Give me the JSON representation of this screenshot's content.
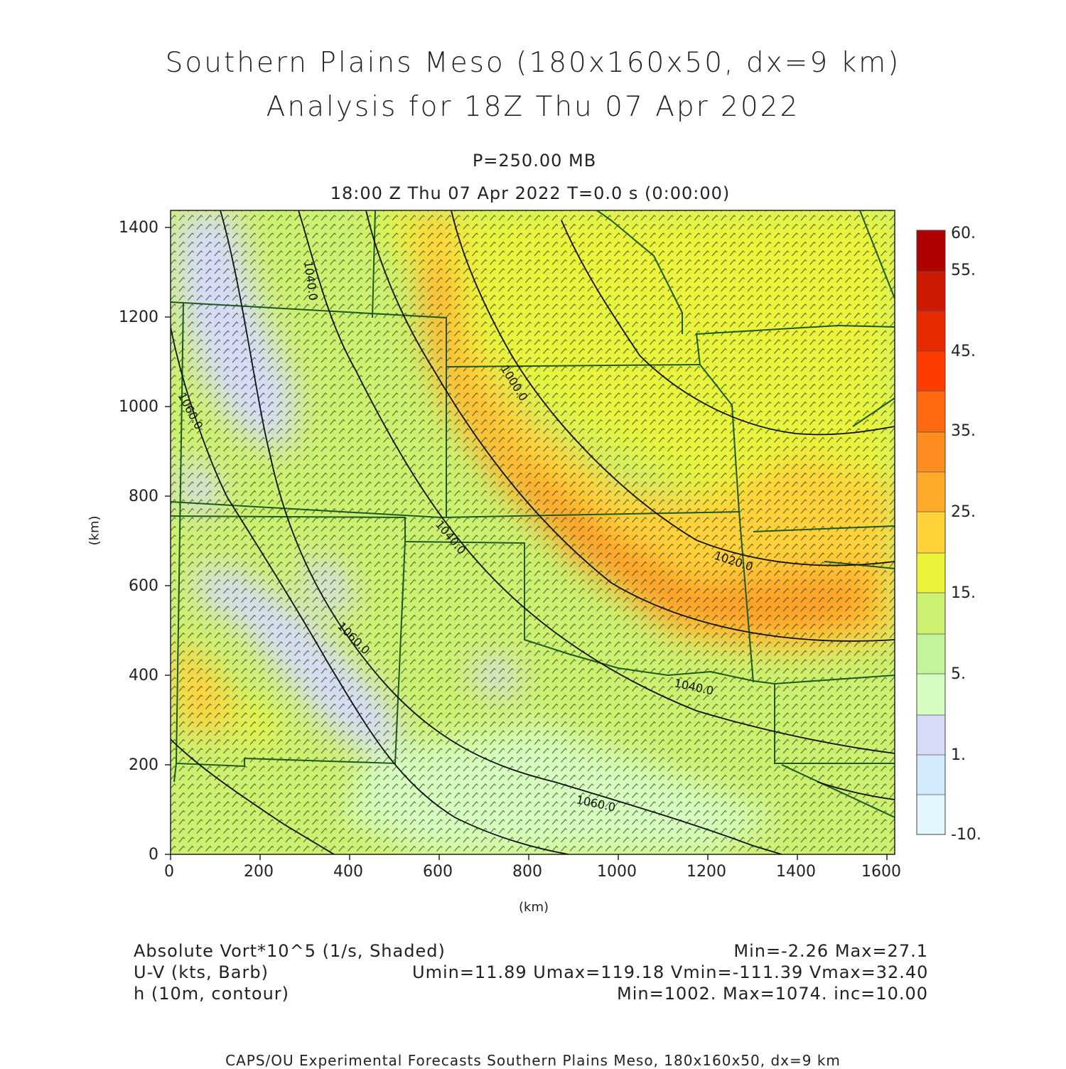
{
  "title_line1": "Southern Plains Meso (180x160x50, dx=9 km)",
  "title_line2": "Analysis for 18Z Thu 07 Apr 2022",
  "subtitle_level": "P=250.00 MB",
  "subtitle_time": "18:00 Z Thu 07 Apr 2022    T=0.0 s (0:00:00)",
  "axes": {
    "x_label": "(km)",
    "y_label": "(km)",
    "x_ticks": [
      "0",
      "200",
      "400",
      "600",
      "800",
      "1000",
      "1200",
      "1400",
      "1600"
    ],
    "y_ticks": [
      "0",
      "200",
      "400",
      "600",
      "800",
      "1000",
      "1200",
      "1400"
    ],
    "x_range": [
      0,
      1620
    ],
    "y_range": [
      0,
      1440
    ]
  },
  "colorbar": {
    "labels": [
      "60.",
      "55.",
      "45.",
      "35.",
      "25.",
      "15.",
      "5.",
      "1.",
      "-10."
    ],
    "colors": [
      "#b00000",
      "#cc1a00",
      "#e82a00",
      "#ff3c00",
      "#ff6a10",
      "#ff8c20",
      "#ffaa2a",
      "#ffd23a",
      "#ecf43a",
      "#ccf070",
      "#c4f49a",
      "#d6fcc0",
      "#d6dcf8",
      "#d2eafc",
      "#e4f6ff"
    ]
  },
  "contours": {
    "labels": [
      "1040.0",
      "1060.0",
      "1000.0",
      "1040.0",
      "1060.0",
      "1020.0",
      "1040.0",
      "1060.0"
    ]
  },
  "footer": {
    "field1_name": "Absolute Vort*10^5 (1/s, Shaded)",
    "field1_stats": "Min=-2.26 Max=27.1",
    "field2_name": "U-V (kts, Barb)",
    "field2_stats": "Umin=11.89 Umax=119.18 Vmin=-111.39 Vmax=32.40",
    "field3_name": "h (10m, contour)",
    "field3_stats": "Min=1002. Max=1074. inc=10.00"
  },
  "credit": "CAPS/OU Experimental Forecasts  Southern Plains Meso, 180x160x50, dx=9 km"
}
